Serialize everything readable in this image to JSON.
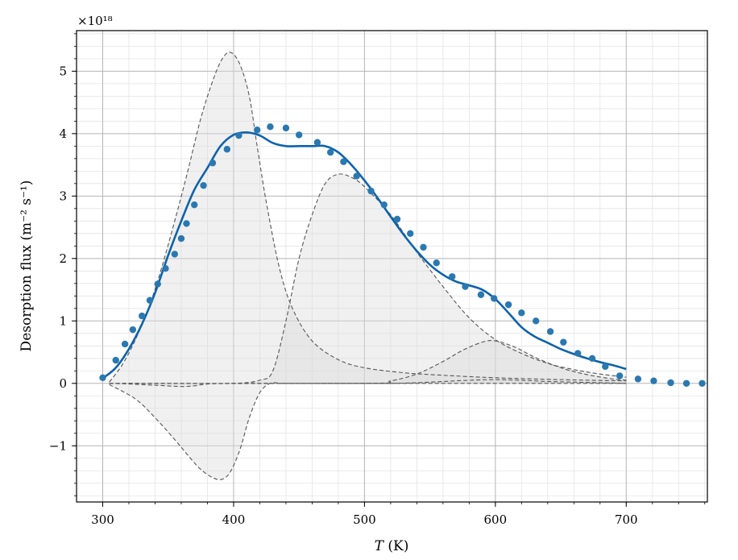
{
  "chart_data": {
    "type": "line",
    "title": "",
    "xlabel_italic": "T",
    "xlabel_rest": " (K)",
    "ylabel": "Desorption flux (m⁻² s⁻¹)",
    "y_multiplier": "×10¹⁸",
    "xlim": [
      280,
      762
    ],
    "ylim": [
      -1.9,
      5.65
    ],
    "x_ticks": [
      300,
      400,
      500,
      600,
      700
    ],
    "y_ticks": [
      -1,
      0,
      1,
      2,
      3,
      4,
      5
    ],
    "grid": true,
    "colors": {
      "data": "#2a78b0",
      "fit": "#0d63ac",
      "components": "#555555",
      "fill": "#dcdcdc"
    },
    "series": [
      {
        "kind": "scatter",
        "x": [
          300,
          310,
          317,
          323,
          330,
          336,
          342,
          348,
          355,
          360,
          364,
          370,
          377,
          384,
          395,
          404,
          418,
          428,
          440,
          450,
          464,
          474,
          484,
          494,
          505,
          515,
          525,
          535,
          545,
          555,
          567,
          577,
          589,
          599,
          610,
          620,
          631,
          642,
          652,
          663,
          674,
          684,
          695,
          709,
          721,
          734,
          746,
          758
        ],
        "y": [
          0.09,
          0.37,
          0.63,
          0.86,
          1.08,
          1.33,
          1.59,
          1.84,
          2.07,
          2.32,
          2.56,
          2.86,
          3.17,
          3.53,
          3.75,
          3.97,
          4.06,
          4.11,
          4.09,
          3.98,
          3.86,
          3.7,
          3.55,
          3.32,
          3.08,
          2.86,
          2.63,
          2.4,
          2.18,
          1.93,
          1.71,
          1.55,
          1.42,
          1.36,
          1.26,
          1.13,
          1.0,
          0.83,
          0.66,
          0.48,
          0.4,
          0.27,
          0.12,
          0.07,
          0.04,
          0.01,
          0.0,
          0.0
        ]
      },
      {
        "kind": "fit",
        "x": [
          300,
          310,
          320,
          330,
          340,
          350,
          360,
          370,
          380,
          390,
          400,
          410,
          420,
          430,
          440,
          450,
          460,
          470,
          480,
          490,
          500,
          510,
          520,
          530,
          540,
          550,
          560,
          570,
          580,
          590,
          600,
          610,
          620,
          630,
          640,
          650,
          660,
          670,
          680,
          690,
          700
        ],
        "y": [
          0.08,
          0.25,
          0.55,
          0.95,
          1.45,
          2.05,
          2.6,
          3.1,
          3.45,
          3.8,
          3.98,
          4.02,
          3.97,
          3.85,
          3.8,
          3.8,
          3.8,
          3.8,
          3.7,
          3.5,
          3.25,
          2.97,
          2.67,
          2.38,
          2.12,
          1.9,
          1.74,
          1.63,
          1.57,
          1.5,
          1.35,
          1.13,
          0.9,
          0.75,
          0.65,
          0.55,
          0.47,
          0.4,
          0.34,
          0.29,
          0.23
        ]
      },
      {
        "kind": "component",
        "x": [
          305,
          315,
          325,
          335,
          345,
          355,
          365,
          375,
          385,
          392,
          398,
          405,
          412,
          418,
          425,
          435,
          445,
          460,
          480,
          500,
          530,
          560,
          600,
          650,
          700
        ],
        "y": [
          0.02,
          0.3,
          0.7,
          1.2,
          1.85,
          2.6,
          3.4,
          4.25,
          4.9,
          5.22,
          5.3,
          5.1,
          4.6,
          3.8,
          2.9,
          1.85,
          1.2,
          0.68,
          0.38,
          0.25,
          0.17,
          0.13,
          0.09,
          0.06,
          0.04
        ]
      },
      {
        "kind": "component",
        "x": [
          305,
          330,
          360,
          400,
          420,
          430,
          440,
          450,
          460,
          470,
          480,
          490,
          500,
          520,
          540,
          560,
          580,
          600,
          620,
          640,
          660,
          680,
          700
        ],
        "y": [
          0.0,
          0.0,
          0.0,
          0.0,
          0.05,
          0.2,
          1.0,
          2.0,
          2.7,
          3.2,
          3.35,
          3.3,
          3.15,
          2.7,
          2.1,
          1.55,
          1.05,
          0.7,
          0.48,
          0.32,
          0.22,
          0.15,
          0.1
        ]
      },
      {
        "kind": "component",
        "x": [
          305,
          500,
          520,
          540,
          560,
          575,
          590,
          600,
          615,
          630,
          650,
          670,
          690,
          700
        ],
        "y": [
          0.0,
          0.0,
          0.04,
          0.15,
          0.35,
          0.53,
          0.66,
          0.68,
          0.58,
          0.42,
          0.25,
          0.14,
          0.07,
          0.05
        ]
      },
      {
        "kind": "component",
        "x": [
          305,
          325,
          340,
          355,
          365,
          375,
          385,
          392,
          398,
          405,
          412,
          420,
          428,
          436,
          445,
          460,
          480,
          520,
          560,
          620,
          700
        ],
        "y": [
          -0.02,
          -0.25,
          -0.55,
          -0.9,
          -1.15,
          -1.38,
          -1.52,
          -1.53,
          -1.4,
          -1.05,
          -0.55,
          -0.15,
          0.0,
          0.0,
          0.0,
          0.0,
          0.0,
          0.0,
          0.0,
          0.0,
          0.0
        ]
      },
      {
        "kind": "component",
        "x": [
          305,
          320,
          340,
          360,
          370,
          380,
          400,
          450,
          500,
          520,
          540,
          560,
          580,
          600,
          620,
          640,
          660,
          680,
          700
        ],
        "y": [
          0.0,
          -0.01,
          -0.03,
          -0.05,
          -0.04,
          -0.01,
          0.0,
          0.0,
          0.0,
          0.0,
          0.01,
          0.03,
          0.05,
          0.06,
          0.05,
          0.03,
          0.02,
          0.01,
          0.0
        ]
      }
    ]
  }
}
